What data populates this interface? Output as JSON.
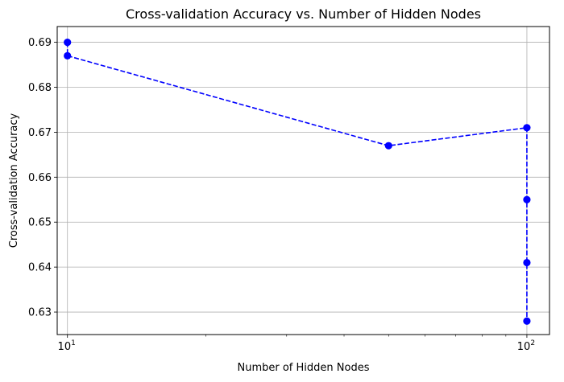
{
  "chart_data": {
    "type": "line",
    "title": "Cross-validation Accuracy vs. Number of Hidden Nodes",
    "xlabel": "Number of Hidden Nodes",
    "ylabel": "Cross-validation Accuracy",
    "xscale": "log",
    "xlim": [
      9.5,
      112
    ],
    "ylim": [
      0.625,
      0.6935
    ],
    "xticks": [
      {
        "value": 10,
        "base": "10",
        "exp": "1"
      },
      {
        "value": 100,
        "base": "10",
        "exp": "2"
      }
    ],
    "yticks": [
      0.63,
      0.64,
      0.65,
      0.66,
      0.67,
      0.68,
      0.69
    ],
    "ytick_labels": [
      "0.63",
      "0.64",
      "0.65",
      "0.66",
      "0.67",
      "0.68",
      "0.69"
    ],
    "grid": true,
    "series": [
      {
        "color": "#0000ff",
        "linestyle": "dashed",
        "marker": "circle",
        "points": [
          {
            "x": 10,
            "y": 0.69
          },
          {
            "x": 10,
            "y": 0.687
          },
          {
            "x": 50,
            "y": 0.667
          },
          {
            "x": 100,
            "y": 0.671
          },
          {
            "x": 100,
            "y": 0.655
          },
          {
            "x": 100,
            "y": 0.641
          },
          {
            "x": 100,
            "y": 0.628
          }
        ]
      }
    ]
  }
}
